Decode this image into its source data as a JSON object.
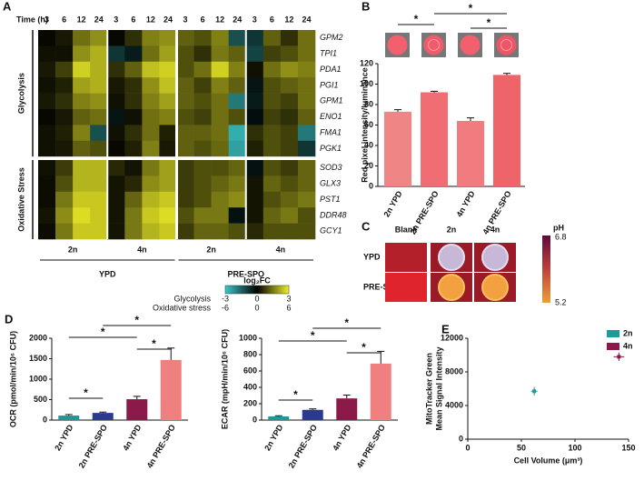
{
  "chart_data": [
    {
      "type": "heatmap",
      "panel": "A",
      "x_title": "Time (h)",
      "x": [
        3,
        6,
        12,
        24
      ],
      "conditions": [
        {
          "name": "YPD",
          "groups": [
            "2n",
            "4n"
          ]
        },
        {
          "name": "PRE-SPO",
          "groups": [
            "2n",
            "4n"
          ]
        }
      ],
      "colorbar_title": "log₂FC",
      "row_groups": [
        {
          "name": "Glycolysis",
          "colorbar_label": "Glycolysis",
          "colorbar_ticks": [
            -3,
            0,
            3
          ],
          "genes": [
            "GPM2",
            "TPI1",
            "PDA1",
            "PGI1",
            "GPM1",
            "ENO1",
            "FMA1",
            "PGK1"
          ],
          "values": [
            [
              0.1,
              0.3,
              1.4,
              1.8,
              0.1,
              0.6,
              1.6,
              1.8,
              1.2,
              1.0,
              1.6,
              -1.2,
              -0.8,
              1.2,
              0.6,
              1.4
            ],
            [
              0.2,
              0.2,
              1.8,
              2.2,
              -0.8,
              -0.4,
              1.4,
              2.0,
              1.0,
              0.6,
              1.5,
              1.2,
              -1.0,
              0.8,
              1.0,
              1.4
            ],
            [
              0.3,
              0.8,
              2.6,
              2.2,
              0.6,
              1.2,
              2.4,
              2.6,
              1.0,
              1.4,
              2.6,
              1.6,
              0.2,
              1.4,
              1.8,
              1.6
            ],
            [
              0.2,
              0.4,
              2.0,
              2.2,
              0.3,
              0.6,
              1.8,
              2.4,
              1.2,
              0.8,
              1.6,
              1.2,
              -0.3,
              1.0,
              1.2,
              1.4
            ],
            [
              0.3,
              0.6,
              1.6,
              1.8,
              0.2,
              0.6,
              1.6,
              2.0,
              1.2,
              1.0,
              1.4,
              -1.8,
              -0.4,
              1.0,
              0.8,
              1.4
            ],
            [
              0.1,
              0.3,
              1.2,
              1.4,
              -0.3,
              0.2,
              1.4,
              1.6,
              1.0,
              0.8,
              1.4,
              1.0,
              -0.2,
              0.8,
              0.6,
              1.2
            ],
            [
              0.2,
              0.4,
              1.6,
              -1.2,
              0.2,
              0.6,
              1.4,
              0.4,
              1.2,
              1.2,
              1.4,
              -2.6,
              0.6,
              1.0,
              0.8,
              -1.8
            ],
            [
              0.2,
              0.3,
              1.2,
              1.0,
              0.1,
              0.4,
              1.6,
              0.3,
              1.2,
              1.0,
              1.3,
              -2.4,
              0.4,
              1.0,
              0.8,
              -0.8
            ]
          ]
        },
        {
          "name": "Oxidative Stress",
          "colorbar_label": "Oxidative stress",
          "colorbar_ticks": [
            -6,
            0,
            6
          ],
          "genes": [
            "SOD3",
            "GLX3",
            "PST1",
            "DDR48",
            "GCY1"
          ],
          "values": [
            [
              0.4,
              1.5,
              4.5,
              4.5,
              1,
              0.5,
              3,
              4,
              1.5,
              2,
              2,
              2.5,
              -0.5,
              2,
              1.5,
              2.5
            ],
            [
              0.3,
              2,
              4.5,
              4.5,
              0.5,
              1,
              3.5,
              4,
              1.5,
              2,
              2.5,
              3,
              0.5,
              2.5,
              2,
              2.5
            ],
            [
              0.3,
              3,
              5,
              5,
              0.5,
              2.5,
              4.5,
              5,
              1.5,
              2,
              3,
              3.5,
              0.5,
              2,
              2.5,
              3
            ],
            [
              0.5,
              3.5,
              5.5,
              5,
              0.5,
              3,
              5,
              5.5,
              2,
              3,
              3,
              -0.5,
              0.5,
              2.5,
              3,
              2
            ],
            [
              0.3,
              3,
              5,
              5,
              0.5,
              3,
              4.5,
              5,
              1.5,
              2.5,
              2.5,
              2,
              1,
              2,
              2,
              2
            ]
          ]
        }
      ]
    },
    {
      "type": "bar",
      "panel": "B",
      "ylabel": "Red pixel intensity/luminance",
      "categories": [
        "2n YPD",
        "2n PRE-SPO",
        "4n YPD",
        "4n PRE-SPO"
      ],
      "values": [
        73,
        92,
        64,
        109
      ],
      "errors": [
        2,
        1,
        3,
        1.5
      ],
      "colors": [
        "#f08585",
        "#f06d74",
        "#f07c80",
        "#ee6469"
      ],
      "ylim": [
        0,
        120
      ],
      "yticks": [
        0,
        20,
        40,
        60,
        80,
        100,
        120
      ],
      "annotations": [
        {
          "from": 0,
          "to": 1,
          "label": "*"
        },
        {
          "from": 1,
          "to": 3,
          "label": "*"
        },
        {
          "from": 2,
          "to": 3,
          "label": "*"
        }
      ]
    },
    {
      "type": "plates",
      "panel": "C",
      "columns": [
        "Blank",
        "2n",
        "4n"
      ],
      "rows": [
        "YPD",
        "PRE-SPO"
      ],
      "colorbar_title": "pH",
      "colorbar_ticks": [
        6.8,
        5.2
      ]
    },
    {
      "type": "bar",
      "panel": "D",
      "ylabel": "OCR (pmol/min/10⁶ CFU)",
      "categories": [
        "2n YPD",
        "2n PRE-SPO",
        "4n YPD",
        "4n PRE-SPO"
      ],
      "values": [
        110,
        175,
        510,
        1470
      ],
      "errors": [
        25,
        20,
        70,
        290
      ],
      "colors": [
        "#1a9a98",
        "#2b3990",
        "#8b1a4a",
        "#f08080"
      ],
      "ylim": [
        0,
        2000
      ],
      "yticks": [
        0,
        500,
        1000,
        1500,
        2000
      ],
      "annotations": [
        {
          "from": 0,
          "to": 1,
          "label": "*"
        },
        {
          "from": 0,
          "to": 2,
          "label": "*"
        },
        {
          "from": 1,
          "to": 3,
          "label": "*"
        },
        {
          "from": 2,
          "to": 3,
          "label": "*"
        }
      ]
    },
    {
      "type": "bar",
      "ylabel": "ECAR (mpH/min/10⁶ CFU)",
      "categories": [
        "2n YPD",
        "2n PRE-SPO",
        "4n YPD",
        "4n PRE-SPO"
      ],
      "values": [
        45,
        125,
        265,
        690
      ],
      "errors": [
        8,
        12,
        40,
        150
      ],
      "colors": [
        "#1a9a98",
        "#2b3990",
        "#8b1a4a",
        "#f08080"
      ],
      "ylim": [
        0,
        1000
      ],
      "yticks": [
        0,
        200,
        400,
        600,
        800,
        1000
      ],
      "annotations": [
        {
          "from": 0,
          "to": 1,
          "label": "*"
        },
        {
          "from": 0,
          "to": 2,
          "label": "*"
        },
        {
          "from": 1,
          "to": 3,
          "label": "*"
        },
        {
          "from": 2,
          "to": 3,
          "label": "*"
        }
      ]
    },
    {
      "type": "scatter",
      "panel": "E",
      "xlabel": "Cell Volume (μm³)",
      "ylabel": [
        "MitoTracker Green",
        "Mean Signal Intensity"
      ],
      "xlim": [
        0,
        150
      ],
      "xticks": [
        0,
        50,
        100,
        150
      ],
      "ylim": [
        0,
        12000
      ],
      "yticks": [
        0,
        4000,
        8000,
        12000
      ],
      "legend": "upper right",
      "series": [
        {
          "name": "2n",
          "color": "#1a9a98",
          "x": [
            62
          ],
          "y": [
            5700
          ],
          "xerr": [
            3
          ],
          "yerr": [
            500
          ]
        },
        {
          "name": "4n",
          "color": "#8b1a4a",
          "x": [
            141
          ],
          "y": [
            9800
          ],
          "xerr": [
            5
          ],
          "yerr": [
            500
          ]
        }
      ]
    }
  ]
}
